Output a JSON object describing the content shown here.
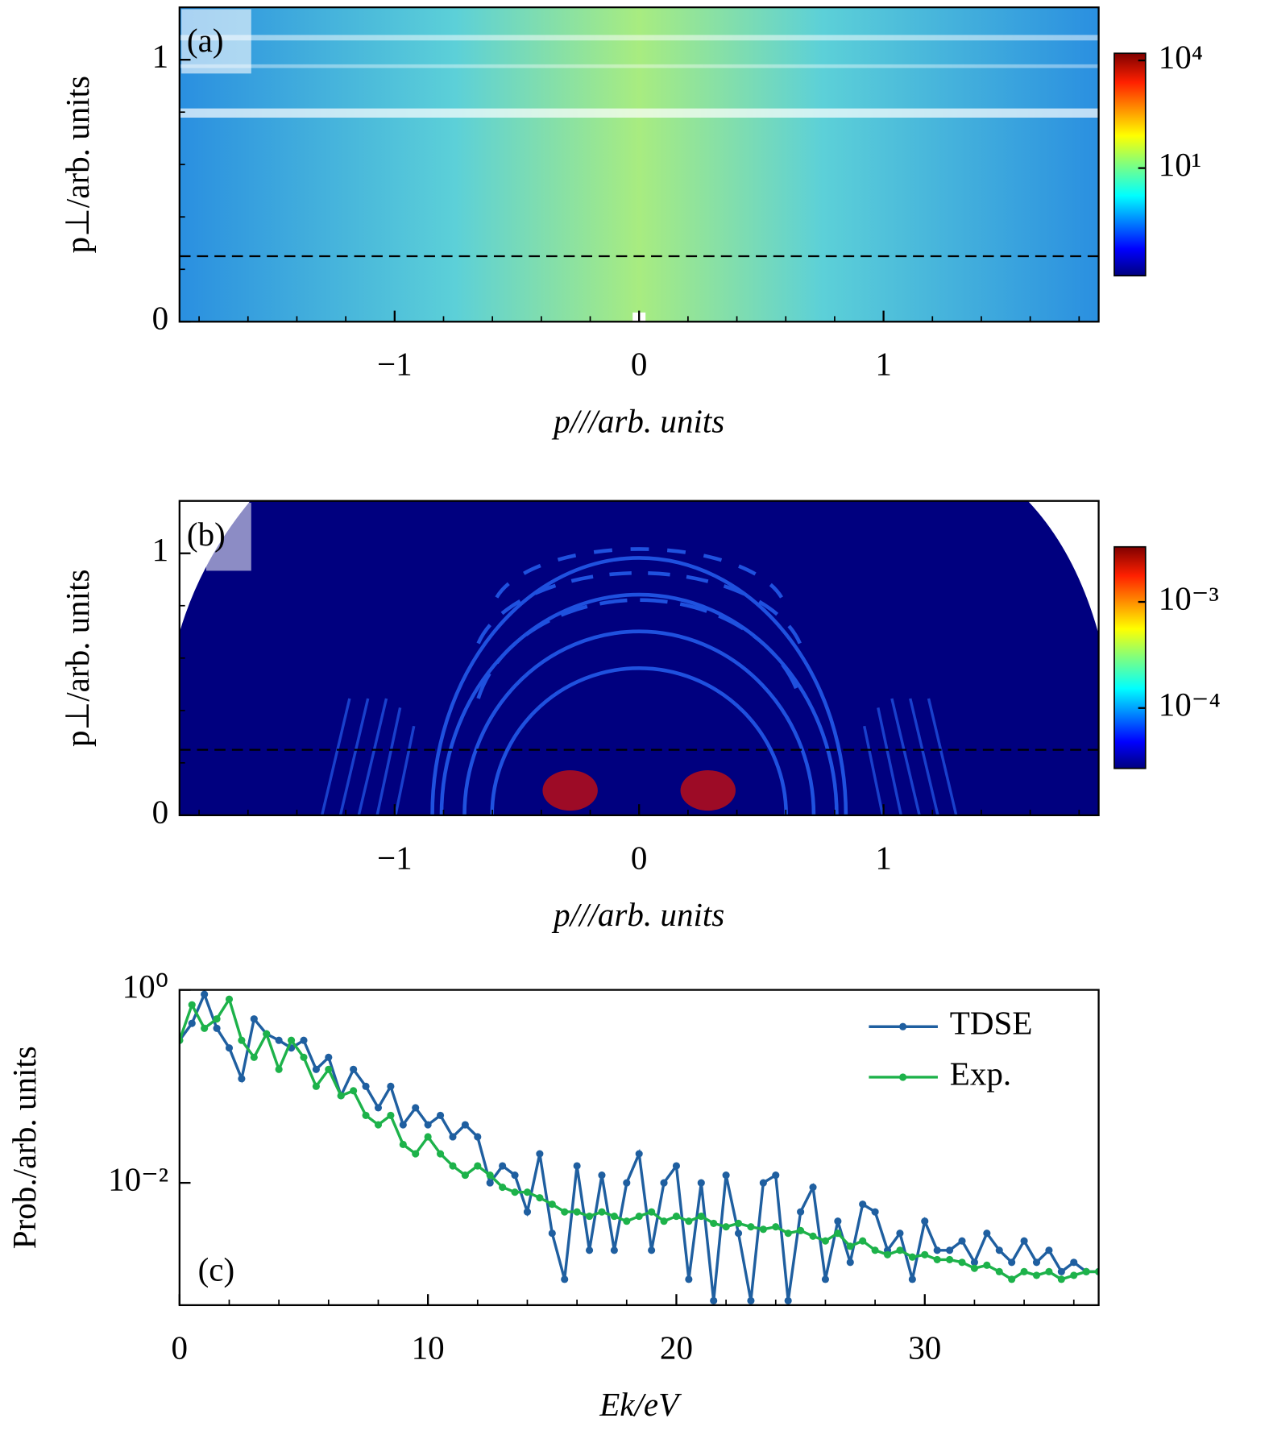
{
  "chart_data": [
    {
      "type": "heatmap",
      "panel_label": "(a)",
      "xlabel": "p///arb. units",
      "ylabel": "p⊥/arb. units",
      "xlim": [
        -1.88,
        1.88
      ],
      "ylim": [
        0,
        1.2
      ],
      "xticks": [
        {
          "value": -1,
          "label": "−1"
        },
        0,
        1
      ],
      "xminor": [
        -1.8,
        -1.6,
        -1.4,
        -1.2,
        -0.8,
        -0.6,
        -0.4,
        -0.2,
        0.2,
        0.4,
        0.6,
        0.8,
        1.2,
        1.4,
        1.6,
        1.8
      ],
      "yticks": [
        0,
        1
      ],
      "yminor": [
        0.2,
        0.4,
        0.6,
        0.8
      ],
      "hline": 0.25,
      "colormap": "jet",
      "colorbar": {
        "log": true,
        "clim": [
          0.01,
          15800
        ],
        "ticks": [
          {
            "value": 10000,
            "label": "10⁴"
          },
          {
            "value": 10,
            "label": "10¹"
          }
        ]
      }
    },
    {
      "type": "heatmap",
      "panel_label": "(b)",
      "xlabel": "p///arb. units",
      "ylabel": "p⊥/arb. units",
      "xlim": [
        -1.88,
        1.88
      ],
      "ylim": [
        0,
        1.2
      ],
      "xticks": [
        {
          "value": -1,
          "label": "−1"
        },
        0,
        1
      ],
      "xminor": [
        -1.8,
        -1.6,
        -1.4,
        -1.2,
        -0.8,
        -0.6,
        -0.4,
        -0.2,
        0.2,
        0.4,
        0.6,
        0.8,
        1.2,
        1.4,
        1.6,
        1.8
      ],
      "yticks": [
        0,
        1
      ],
      "yminor": [
        0.2,
        0.4,
        0.6,
        0.8
      ],
      "hline": 0.25,
      "colormap": "jet",
      "colorbar": {
        "log": true,
        "clim": [
          2.7e-05,
          0.0033
        ],
        "ticks": [
          {
            "value": 0.001,
            "label": "10⁻³"
          },
          {
            "value": 0.0001,
            "label": "10⁻⁴"
          }
        ]
      }
    },
    {
      "type": "line",
      "panel_label": "(c)",
      "xlabel": "Ek/eV",
      "ylabel": "Prob./arb. units",
      "xlim": [
        0,
        37
      ],
      "ylim": [
        0.00054,
        1
      ],
      "ylog": true,
      "xticks": [
        0,
        10,
        20,
        30
      ],
      "xminor": [
        2,
        4,
        6,
        8,
        12,
        14,
        16,
        18,
        22,
        24,
        26,
        28,
        32,
        34,
        36
      ],
      "yticks": [
        {
          "value": 1,
          "label": "10⁰"
        },
        {
          "value": 0.01,
          "label": "10⁻²"
        }
      ],
      "legend": "upper right",
      "x": [
        0,
        0.5,
        1,
        1.5,
        2,
        2.5,
        3,
        3.5,
        4,
        4.5,
        5,
        5.5,
        6,
        6.5,
        7,
        7.5,
        8,
        8.5,
        9,
        9.5,
        10,
        10.5,
        11,
        11.5,
        12,
        12.5,
        13,
        13.5,
        14,
        14.5,
        15,
        15.5,
        16,
        16.5,
        17,
        17.5,
        18,
        18.5,
        19,
        19.5,
        20,
        20.5,
        21,
        21.5,
        22,
        22.5,
        23,
        23.5,
        24,
        24.5,
        25,
        25.5,
        26,
        26.5,
        27,
        27.5,
        28,
        28.5,
        29,
        29.5,
        30,
        30.5,
        31,
        31.5,
        32,
        32.5,
        33,
        33.5,
        34,
        34.5,
        35,
        35.5,
        36,
        36.5,
        37
      ],
      "series": [
        {
          "name": "TDSE",
          "color": "#1f5fa0",
          "values": [
            0.3,
            0.45,
            0.9,
            0.4,
            0.25,
            0.12,
            0.5,
            0.35,
            0.3,
            0.25,
            0.3,
            0.15,
            0.2,
            0.08,
            0.15,
            0.1,
            0.06,
            0.1,
            0.04,
            0.06,
            0.04,
            0.05,
            0.03,
            0.04,
            0.03,
            0.01,
            0.015,
            0.012,
            0.005,
            0.02,
            0.003,
            0.001,
            0.015,
            0.002,
            0.012,
            0.002,
            0.01,
            0.02,
            0.002,
            0.01,
            0.015,
            0.001,
            0.01,
            0.0006,
            0.012,
            0.003,
            0.0006,
            0.01,
            0.012,
            0.0006,
            0.005,
            0.009,
            0.001,
            0.004,
            0.0015,
            0.006,
            0.005,
            0.002,
            0.003,
            0.001,
            0.004,
            0.002,
            0.002,
            0.0025,
            0.0015,
            0.003,
            0.002,
            0.0015,
            0.0025,
            0.0015,
            0.002,
            0.0012,
            0.0015,
            0.0012,
            0.0012
          ]
        },
        {
          "name": "Exp.",
          "color": "#1db24a",
          "values": [
            0.3,
            0.7,
            0.4,
            0.5,
            0.8,
            0.3,
            0.2,
            0.35,
            0.15,
            0.3,
            0.2,
            0.1,
            0.15,
            0.08,
            0.09,
            0.05,
            0.04,
            0.05,
            0.025,
            0.02,
            0.03,
            0.02,
            0.015,
            0.012,
            0.015,
            0.012,
            0.009,
            0.008,
            0.008,
            0.007,
            0.006,
            0.005,
            0.005,
            0.0045,
            0.005,
            0.0045,
            0.004,
            0.0045,
            0.005,
            0.004,
            0.0045,
            0.004,
            0.0045,
            0.0038,
            0.0035,
            0.0038,
            0.0035,
            0.0033,
            0.0035,
            0.003,
            0.0032,
            0.0028,
            0.0025,
            0.003,
            0.0022,
            0.0025,
            0.002,
            0.0018,
            0.002,
            0.0017,
            0.0018,
            0.0016,
            0.0016,
            0.0015,
            0.0013,
            0.0014,
            0.0012,
            0.001,
            0.0012,
            0.0011,
            0.0012,
            0.001,
            0.0011,
            0.0012,
            0.0012
          ]
        }
      ]
    }
  ]
}
